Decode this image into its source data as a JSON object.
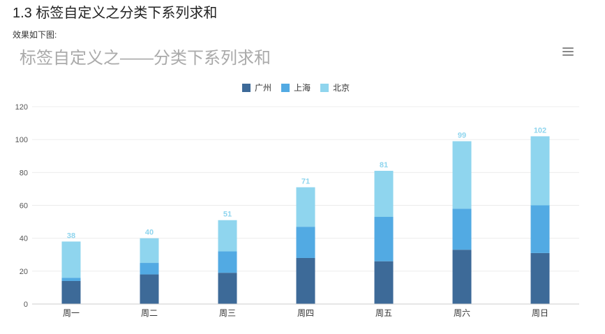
{
  "document": {
    "heading": "1.3 标签自定义之分类下系列求和",
    "caption": "效果如下图:"
  },
  "chart_data": {
    "type": "bar",
    "stacked": true,
    "title": "标签自定义之——分类下系列求和",
    "categories": [
      "周一",
      "周二",
      "周三",
      "周四",
      "周五",
      "周六",
      "周日"
    ],
    "series": [
      {
        "name": "广州",
        "color": "#3d6a98",
        "values": [
          14,
          18,
          19,
          28,
          26,
          33,
          31
        ]
      },
      {
        "name": "上海",
        "color": "#52aae3",
        "values": [
          2,
          7,
          13,
          19,
          27,
          25,
          29
        ]
      },
      {
        "name": "北京",
        "color": "#8fd5ee",
        "values": [
          22,
          15,
          19,
          24,
          28,
          41,
          42
        ]
      }
    ],
    "totals": [
      38,
      40,
      51,
      71,
      81,
      99,
      102
    ],
    "ylim": [
      0,
      120
    ],
    "yticks": [
      0,
      20,
      40,
      60,
      80,
      100,
      120
    ],
    "legend_position": "top-center",
    "grid": true,
    "total_label_color": "#8fd5ee"
  },
  "toolbar": {
    "menu_icon": "hamburger-menu-icon"
  }
}
